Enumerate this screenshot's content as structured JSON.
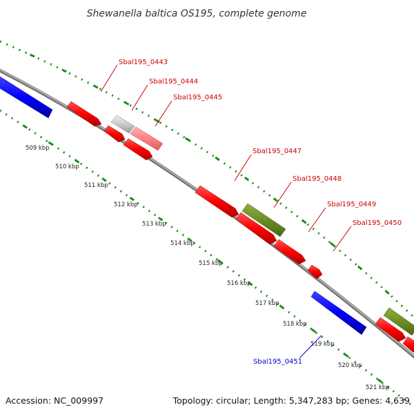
{
  "title": "Shewanella baltica OS195, complete genome",
  "footer": {
    "accession": "Accession: NC_009997",
    "summary": "Topology: circular; Length: 5,347,283 bp; Genes: 4,639"
  },
  "colors": {
    "backbone": "#808080",
    "ticks": "#1a8c1a",
    "forward_gene": "#ff0000",
    "reverse_gene": "#0000ff",
    "olive_gene": "#6b8e23",
    "light_red_gene": "#ff8080",
    "grey_gene": "#c8c8c8",
    "label_forward": "#cc0000",
    "label_reverse": "#0000cc"
  },
  "scale_labels": [
    "509 kbp",
    "510 kbp",
    "511 kbp",
    "512 kbp",
    "513 kbp",
    "514 kbp",
    "515 kbp",
    "516 kbp",
    "517 kbp",
    "518 kbp",
    "519 kbp",
    "520 kbp",
    "521 kbp"
  ],
  "gene_labels": [
    {
      "text": "Sbal195_0443",
      "strand": "forward"
    },
    {
      "text": "Sbal195_0444",
      "strand": "forward"
    },
    {
      "text": "Sbal195_0445",
      "strand": "forward"
    },
    {
      "text": "Sbal195_0447",
      "strand": "forward"
    },
    {
      "text": "Sbal195_0448",
      "strand": "forward"
    },
    {
      "text": "Sbal195_0449",
      "strand": "forward"
    },
    {
      "text": "Sbal195_0450",
      "strand": "forward"
    },
    {
      "text": "Sbal195_0451",
      "strand": "reverse"
    }
  ]
}
